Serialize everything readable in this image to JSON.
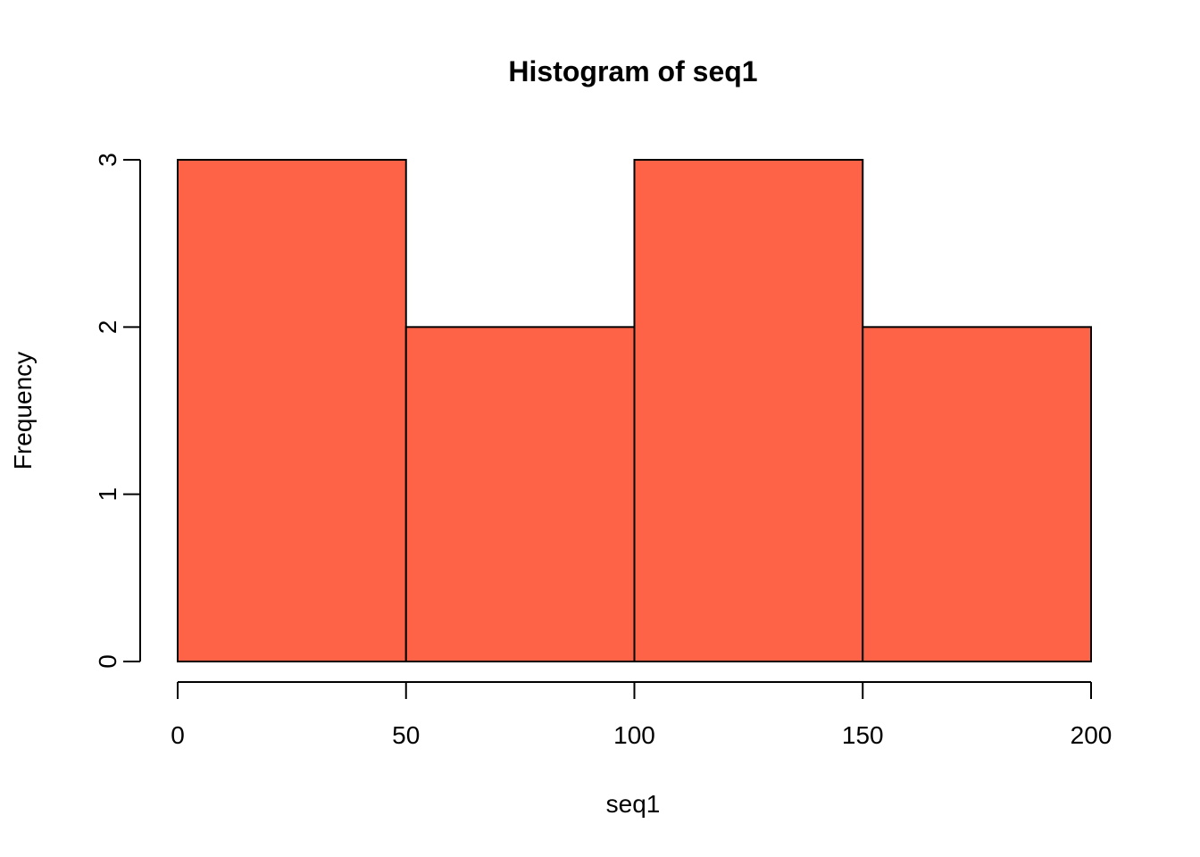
{
  "chart_data": {
    "type": "bar",
    "subtype": "histogram",
    "title": "Histogram of seq1",
    "xlabel": "seq1",
    "ylabel": "Frequency",
    "bins": [
      {
        "from": 0,
        "to": 50,
        "count": 3
      },
      {
        "from": 50,
        "to": 100,
        "count": 2
      },
      {
        "from": 100,
        "to": 150,
        "count": 3
      },
      {
        "from": 150,
        "to": 200,
        "count": 2
      }
    ],
    "xlim": [
      0,
      200
    ],
    "ylim": [
      0,
      3
    ],
    "xticks": [
      0,
      50,
      100,
      150,
      200
    ],
    "yticks": [
      0,
      1,
      2,
      3
    ],
    "grid": false,
    "bar_color": "#FF6347",
    "edge_color": "#000000"
  }
}
